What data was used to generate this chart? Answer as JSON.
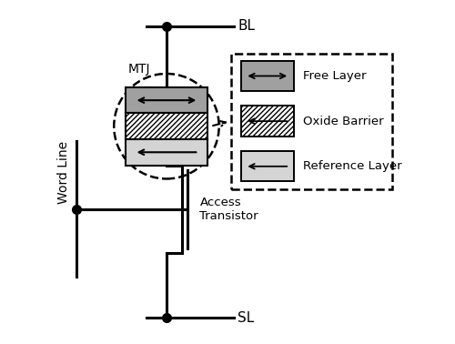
{
  "bg_color": "#ffffff",
  "line_color": "#000000",
  "line_width": 2.2,
  "free_layer_color": "#a0a0a0",
  "reference_layer_color": "#d4d4d4",
  "labels": {
    "BL": "BL",
    "SL": "SL",
    "WL": "Word Line",
    "MTJ": "MTJ",
    "transistor": "Access\nTransistor",
    "free": "Free Layer",
    "oxide": "Oxide Barrier",
    "reference": "Reference Layer"
  },
  "font_size": 10
}
